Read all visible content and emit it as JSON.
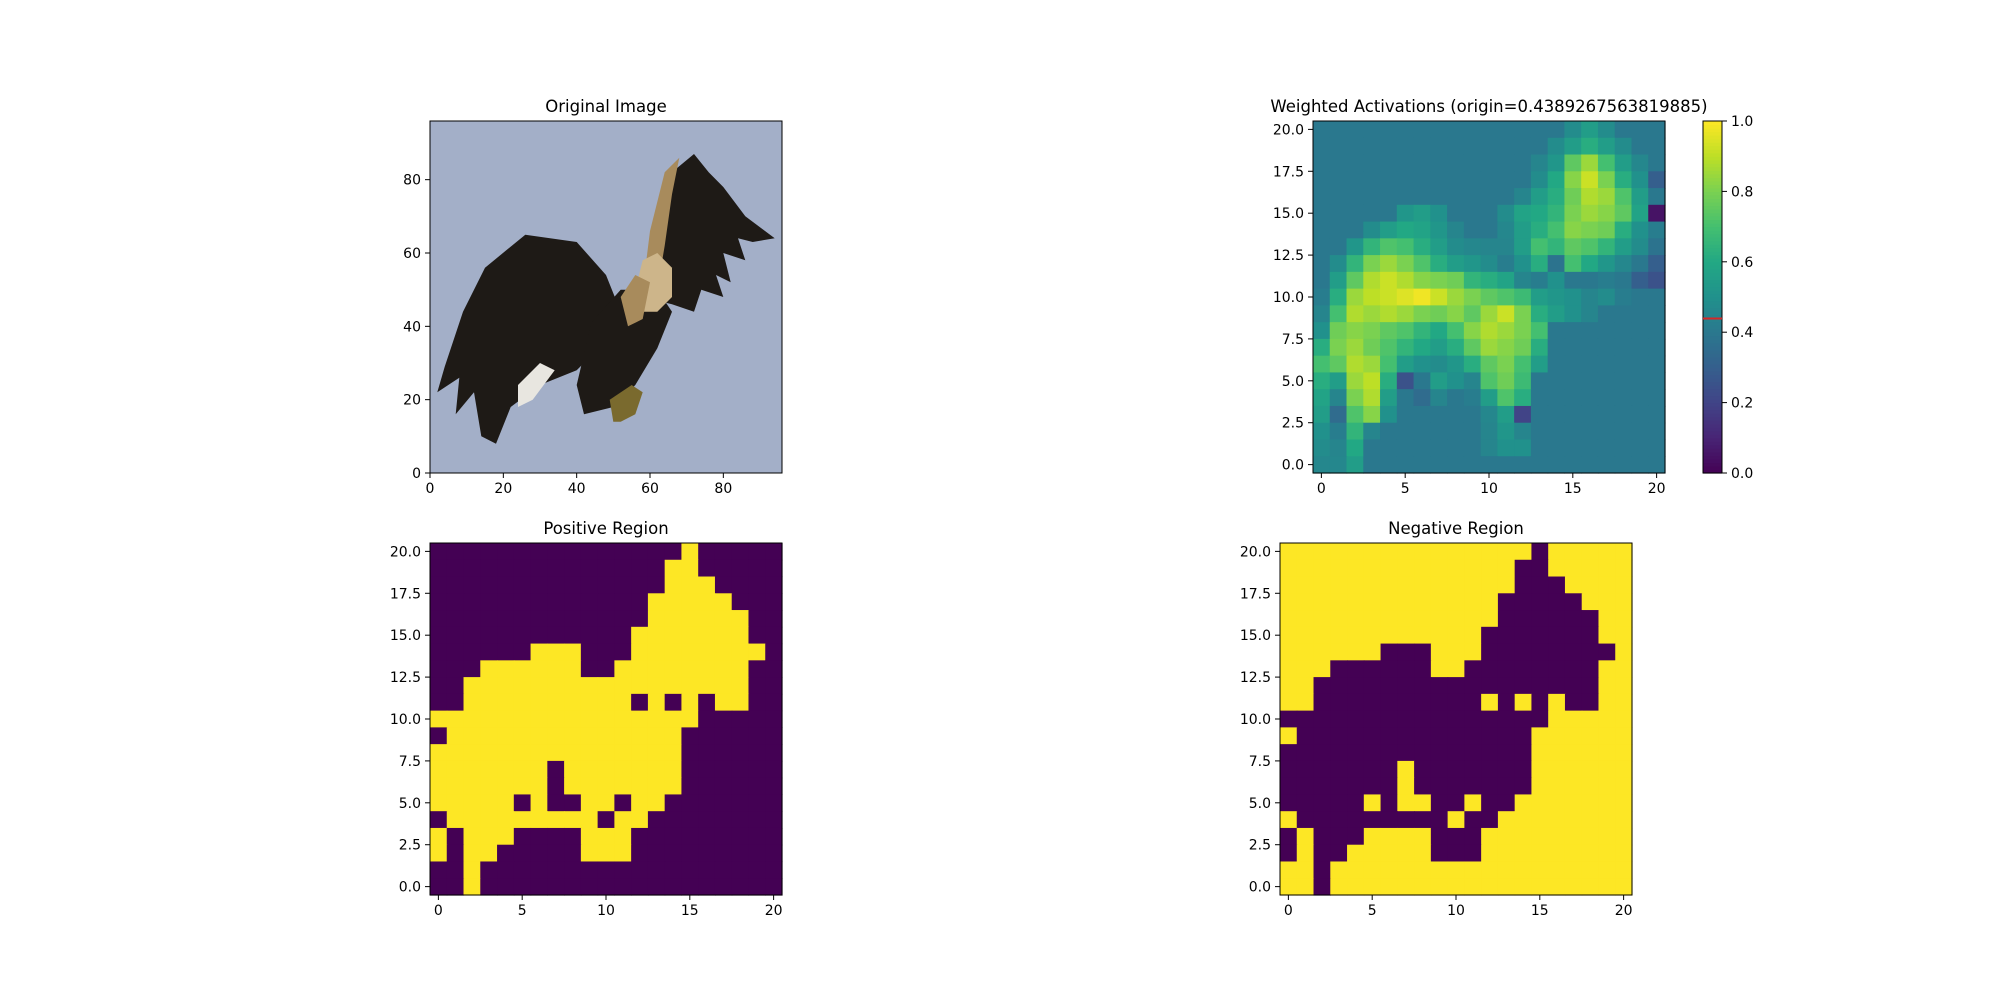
{
  "chart_data": [
    {
      "type": "heatmap",
      "id": "original",
      "title": "Original Image",
      "grid": false,
      "xlim": [
        0,
        96
      ],
      "ylim": [
        96,
        0
      ],
      "xticks": [
        "0",
        "20",
        "40",
        "60",
        "80"
      ],
      "yticks": [
        "0",
        "20",
        "40",
        "60",
        "80"
      ],
      "xtick_values": [
        0,
        20,
        40,
        60,
        80
      ],
      "ytick_values": [
        0,
        20,
        40,
        60,
        80
      ],
      "content": "eagle photograph",
      "colors": {
        "sky": "#a3afc8",
        "wing": "#1e1a16",
        "wing_edge": "#2a2622",
        "head": "#cdb58a",
        "neck": "#a88b5c",
        "feet": "#7a6a2e"
      }
    },
    {
      "type": "heatmap",
      "id": "weighted",
      "title": "Weighted Activations (origin=0.4389267563819885)",
      "grid": false,
      "xlim": [
        -0.5,
        20.5
      ],
      "ylim": [
        20.5,
        -0.5
      ],
      "xticks": [
        "0",
        "5",
        "10",
        "15",
        "20"
      ],
      "yticks": [
        "0.0",
        "2.5",
        "5.0",
        "7.5",
        "10.0",
        "12.5",
        "15.0",
        "17.5",
        "20.0"
      ],
      "xtick_values": [
        0,
        5,
        10,
        15,
        20
      ],
      "ytick_values": [
        0,
        2.5,
        5,
        7.5,
        10,
        12.5,
        15,
        17.5,
        20
      ],
      "colormap": "viridis",
      "colorbar": {
        "range": [
          0,
          1
        ],
        "ticks": [
          "0.0",
          "0.2",
          "0.4",
          "0.6",
          "0.8",
          "1.0"
        ],
        "tick_values": [
          0,
          0.2,
          0.4,
          0.6,
          0.8,
          1.0
        ],
        "marker_value": 0.4389267563819885,
        "marker_color": "#d62728"
      },
      "values": [
        [
          0.4,
          0.4,
          0.4,
          0.4,
          0.4,
          0.4,
          0.4,
          0.4,
          0.4,
          0.4,
          0.4,
          0.4,
          0.4,
          0.4,
          0.4,
          0.48,
          0.55,
          0.48,
          0.4,
          0.4,
          0.4
        ],
        [
          0.4,
          0.4,
          0.4,
          0.4,
          0.4,
          0.4,
          0.4,
          0.4,
          0.4,
          0.4,
          0.4,
          0.4,
          0.4,
          0.4,
          0.48,
          0.55,
          0.62,
          0.55,
          0.48,
          0.4,
          0.4
        ],
        [
          0.4,
          0.4,
          0.4,
          0.4,
          0.4,
          0.4,
          0.4,
          0.4,
          0.4,
          0.4,
          0.4,
          0.4,
          0.4,
          0.45,
          0.52,
          0.75,
          0.85,
          0.7,
          0.55,
          0.46,
          0.4
        ],
        [
          0.4,
          0.4,
          0.4,
          0.4,
          0.4,
          0.4,
          0.4,
          0.4,
          0.4,
          0.4,
          0.4,
          0.4,
          0.4,
          0.48,
          0.6,
          0.82,
          0.92,
          0.8,
          0.62,
          0.5,
          0.3
        ],
        [
          0.4,
          0.4,
          0.4,
          0.4,
          0.4,
          0.4,
          0.4,
          0.4,
          0.4,
          0.4,
          0.4,
          0.4,
          0.45,
          0.55,
          0.62,
          0.78,
          0.88,
          0.85,
          0.72,
          0.55,
          0.4
        ],
        [
          0.4,
          0.4,
          0.4,
          0.4,
          0.4,
          0.52,
          0.55,
          0.5,
          0.4,
          0.4,
          0.4,
          0.48,
          0.58,
          0.6,
          0.65,
          0.8,
          0.85,
          0.82,
          0.75,
          0.58,
          0.05
        ],
        [
          0.4,
          0.4,
          0.4,
          0.48,
          0.55,
          0.6,
          0.58,
          0.52,
          0.45,
          0.4,
          0.4,
          0.46,
          0.55,
          0.62,
          0.7,
          0.82,
          0.8,
          0.78,
          0.62,
          0.5,
          0.42
        ],
        [
          0.4,
          0.4,
          0.52,
          0.65,
          0.72,
          0.7,
          0.62,
          0.55,
          0.48,
          0.46,
          0.45,
          0.45,
          0.55,
          0.7,
          0.65,
          0.75,
          0.72,
          0.65,
          0.55,
          0.48,
          0.38
        ],
        [
          0.4,
          0.48,
          0.65,
          0.8,
          0.85,
          0.8,
          0.72,
          0.62,
          0.55,
          0.52,
          0.48,
          0.42,
          0.5,
          0.62,
          0.38,
          0.7,
          0.6,
          0.52,
          0.46,
          0.4,
          0.3
        ],
        [
          0.4,
          0.55,
          0.75,
          0.88,
          0.92,
          0.88,
          0.82,
          0.8,
          0.78,
          0.65,
          0.62,
          0.58,
          0.45,
          0.42,
          0.5,
          0.4,
          0.4,
          0.42,
          0.4,
          0.3,
          0.25
        ],
        [
          0.42,
          0.62,
          0.85,
          0.9,
          0.92,
          0.95,
          0.98,
          0.92,
          0.85,
          0.8,
          0.75,
          0.72,
          0.68,
          0.55,
          0.52,
          0.5,
          0.45,
          0.48,
          0.42,
          0.4,
          0.4
        ],
        [
          0.45,
          0.7,
          0.88,
          0.85,
          0.88,
          0.85,
          0.8,
          0.78,
          0.82,
          0.75,
          0.85,
          0.92,
          0.8,
          0.62,
          0.55,
          0.5,
          0.45,
          0.4,
          0.4,
          0.4,
          0.4
        ],
        [
          0.5,
          0.78,
          0.82,
          0.8,
          0.75,
          0.72,
          0.65,
          0.6,
          0.7,
          0.82,
          0.88,
          0.85,
          0.8,
          0.7,
          0.4,
          0.4,
          0.4,
          0.4,
          0.4,
          0.4,
          0.4
        ],
        [
          0.62,
          0.8,
          0.85,
          0.78,
          0.72,
          0.65,
          0.6,
          0.55,
          0.62,
          0.75,
          0.85,
          0.82,
          0.78,
          0.62,
          0.4,
          0.4,
          0.4,
          0.4,
          0.4,
          0.4,
          0.4
        ],
        [
          0.7,
          0.75,
          0.88,
          0.85,
          0.7,
          0.55,
          0.5,
          0.48,
          0.52,
          0.62,
          0.75,
          0.8,
          0.7,
          0.55,
          0.4,
          0.4,
          0.4,
          0.4,
          0.4,
          0.4,
          0.4
        ],
        [
          0.62,
          0.55,
          0.85,
          0.9,
          0.62,
          0.25,
          0.4,
          0.55,
          0.5,
          0.45,
          0.72,
          0.78,
          0.68,
          0.4,
          0.4,
          0.4,
          0.4,
          0.4,
          0.4,
          0.4,
          0.4
        ],
        [
          0.58,
          0.45,
          0.8,
          0.88,
          0.55,
          0.4,
          0.35,
          0.45,
          0.4,
          0.42,
          0.55,
          0.72,
          0.62,
          0.4,
          0.4,
          0.4,
          0.4,
          0.4,
          0.4,
          0.4,
          0.4
        ],
        [
          0.55,
          0.35,
          0.72,
          0.82,
          0.5,
          0.4,
          0.4,
          0.4,
          0.4,
          0.4,
          0.46,
          0.55,
          0.2,
          0.4,
          0.4,
          0.4,
          0.4,
          0.4,
          0.4,
          0.4,
          0.4
        ],
        [
          0.5,
          0.42,
          0.65,
          0.45,
          0.4,
          0.4,
          0.4,
          0.4,
          0.4,
          0.4,
          0.45,
          0.52,
          0.45,
          0.4,
          0.4,
          0.4,
          0.4,
          0.4,
          0.4,
          0.4,
          0.4
        ],
        [
          0.48,
          0.45,
          0.6,
          0.4,
          0.4,
          0.4,
          0.4,
          0.4,
          0.4,
          0.4,
          0.45,
          0.5,
          0.5,
          0.4,
          0.4,
          0.4,
          0.4,
          0.4,
          0.4,
          0.4,
          0.4
        ],
        [
          0.46,
          0.46,
          0.55,
          0.4,
          0.4,
          0.4,
          0.4,
          0.4,
          0.4,
          0.4,
          0.4,
          0.4,
          0.4,
          0.4,
          0.4,
          0.4,
          0.4,
          0.4,
          0.4,
          0.4,
          0.4
        ]
      ]
    },
    {
      "type": "heatmap",
      "id": "positive",
      "title": "Positive Region",
      "grid": false,
      "xlim": [
        -0.5,
        20.5
      ],
      "ylim": [
        20.5,
        -0.5
      ],
      "xticks": [
        "0",
        "5",
        "10",
        "15",
        "20"
      ],
      "yticks": [
        "0.0",
        "2.5",
        "5.0",
        "7.5",
        "10.0",
        "12.5",
        "15.0",
        "17.5",
        "20.0"
      ],
      "xtick_values": [
        0,
        5,
        10,
        15,
        20
      ],
      "ytick_values": [
        0,
        2.5,
        5,
        7.5,
        10,
        12.5,
        15,
        17.5,
        20
      ],
      "colors": {
        "0": "#440154",
        "1": "#fde725"
      },
      "values": [
        "000000000000000100000",
        "000000000000001100000",
        "000000000000001110000",
        "000000000000011111000",
        "000000000000011111100",
        "000000000000111111100",
        "000000111000111111110",
        "000111111001111111100",
        "001111111111111111100",
        "001111111111010101100",
        "111111111111111100000",
        "011111111111111000000",
        "111111111111111000000",
        "111111101111111000000",
        "111111101111111000000",
        "111110100110110000000",
        "011111111101100000000",
        "101110000111000000000",
        "101100000111000000000",
        "001000000000000000000",
        "001000000000000000000"
      ]
    },
    {
      "type": "heatmap",
      "id": "negative",
      "title": "Negative Region",
      "grid": false,
      "xlim": [
        -0.5,
        20.5
      ],
      "ylim": [
        20.5,
        -0.5
      ],
      "xticks": [
        "0",
        "5",
        "10",
        "15",
        "20"
      ],
      "yticks": [
        "0.0",
        "2.5",
        "5.0",
        "7.5",
        "10.0",
        "12.5",
        "15.0",
        "17.5",
        "20.0"
      ],
      "xtick_values": [
        0,
        5,
        10,
        15,
        20
      ],
      "ytick_values": [
        0,
        2.5,
        5,
        7.5,
        10,
        12.5,
        15,
        17.5,
        20
      ],
      "colors": {
        "0": "#440154",
        "1": "#fde725"
      },
      "values": [
        "111111111111111011111",
        "111111111111110011111",
        "111111111111110001111",
        "111111111111100000111",
        "111111111111100000011",
        "111111111111000000011",
        "111111000111000000001",
        "111000000110000000011",
        "110000000000000000011",
        "110000000000101010011",
        "000000000000000011111",
        "100000000000000111111",
        "000000000000000111111",
        "000000010000000111111",
        "000000010000000111111",
        "000001011001001111111",
        "100000000010011111111",
        "010001111000111111111",
        "010011111000111111111",
        "110111111111111111111",
        "110111111111111111111"
      ]
    }
  ]
}
